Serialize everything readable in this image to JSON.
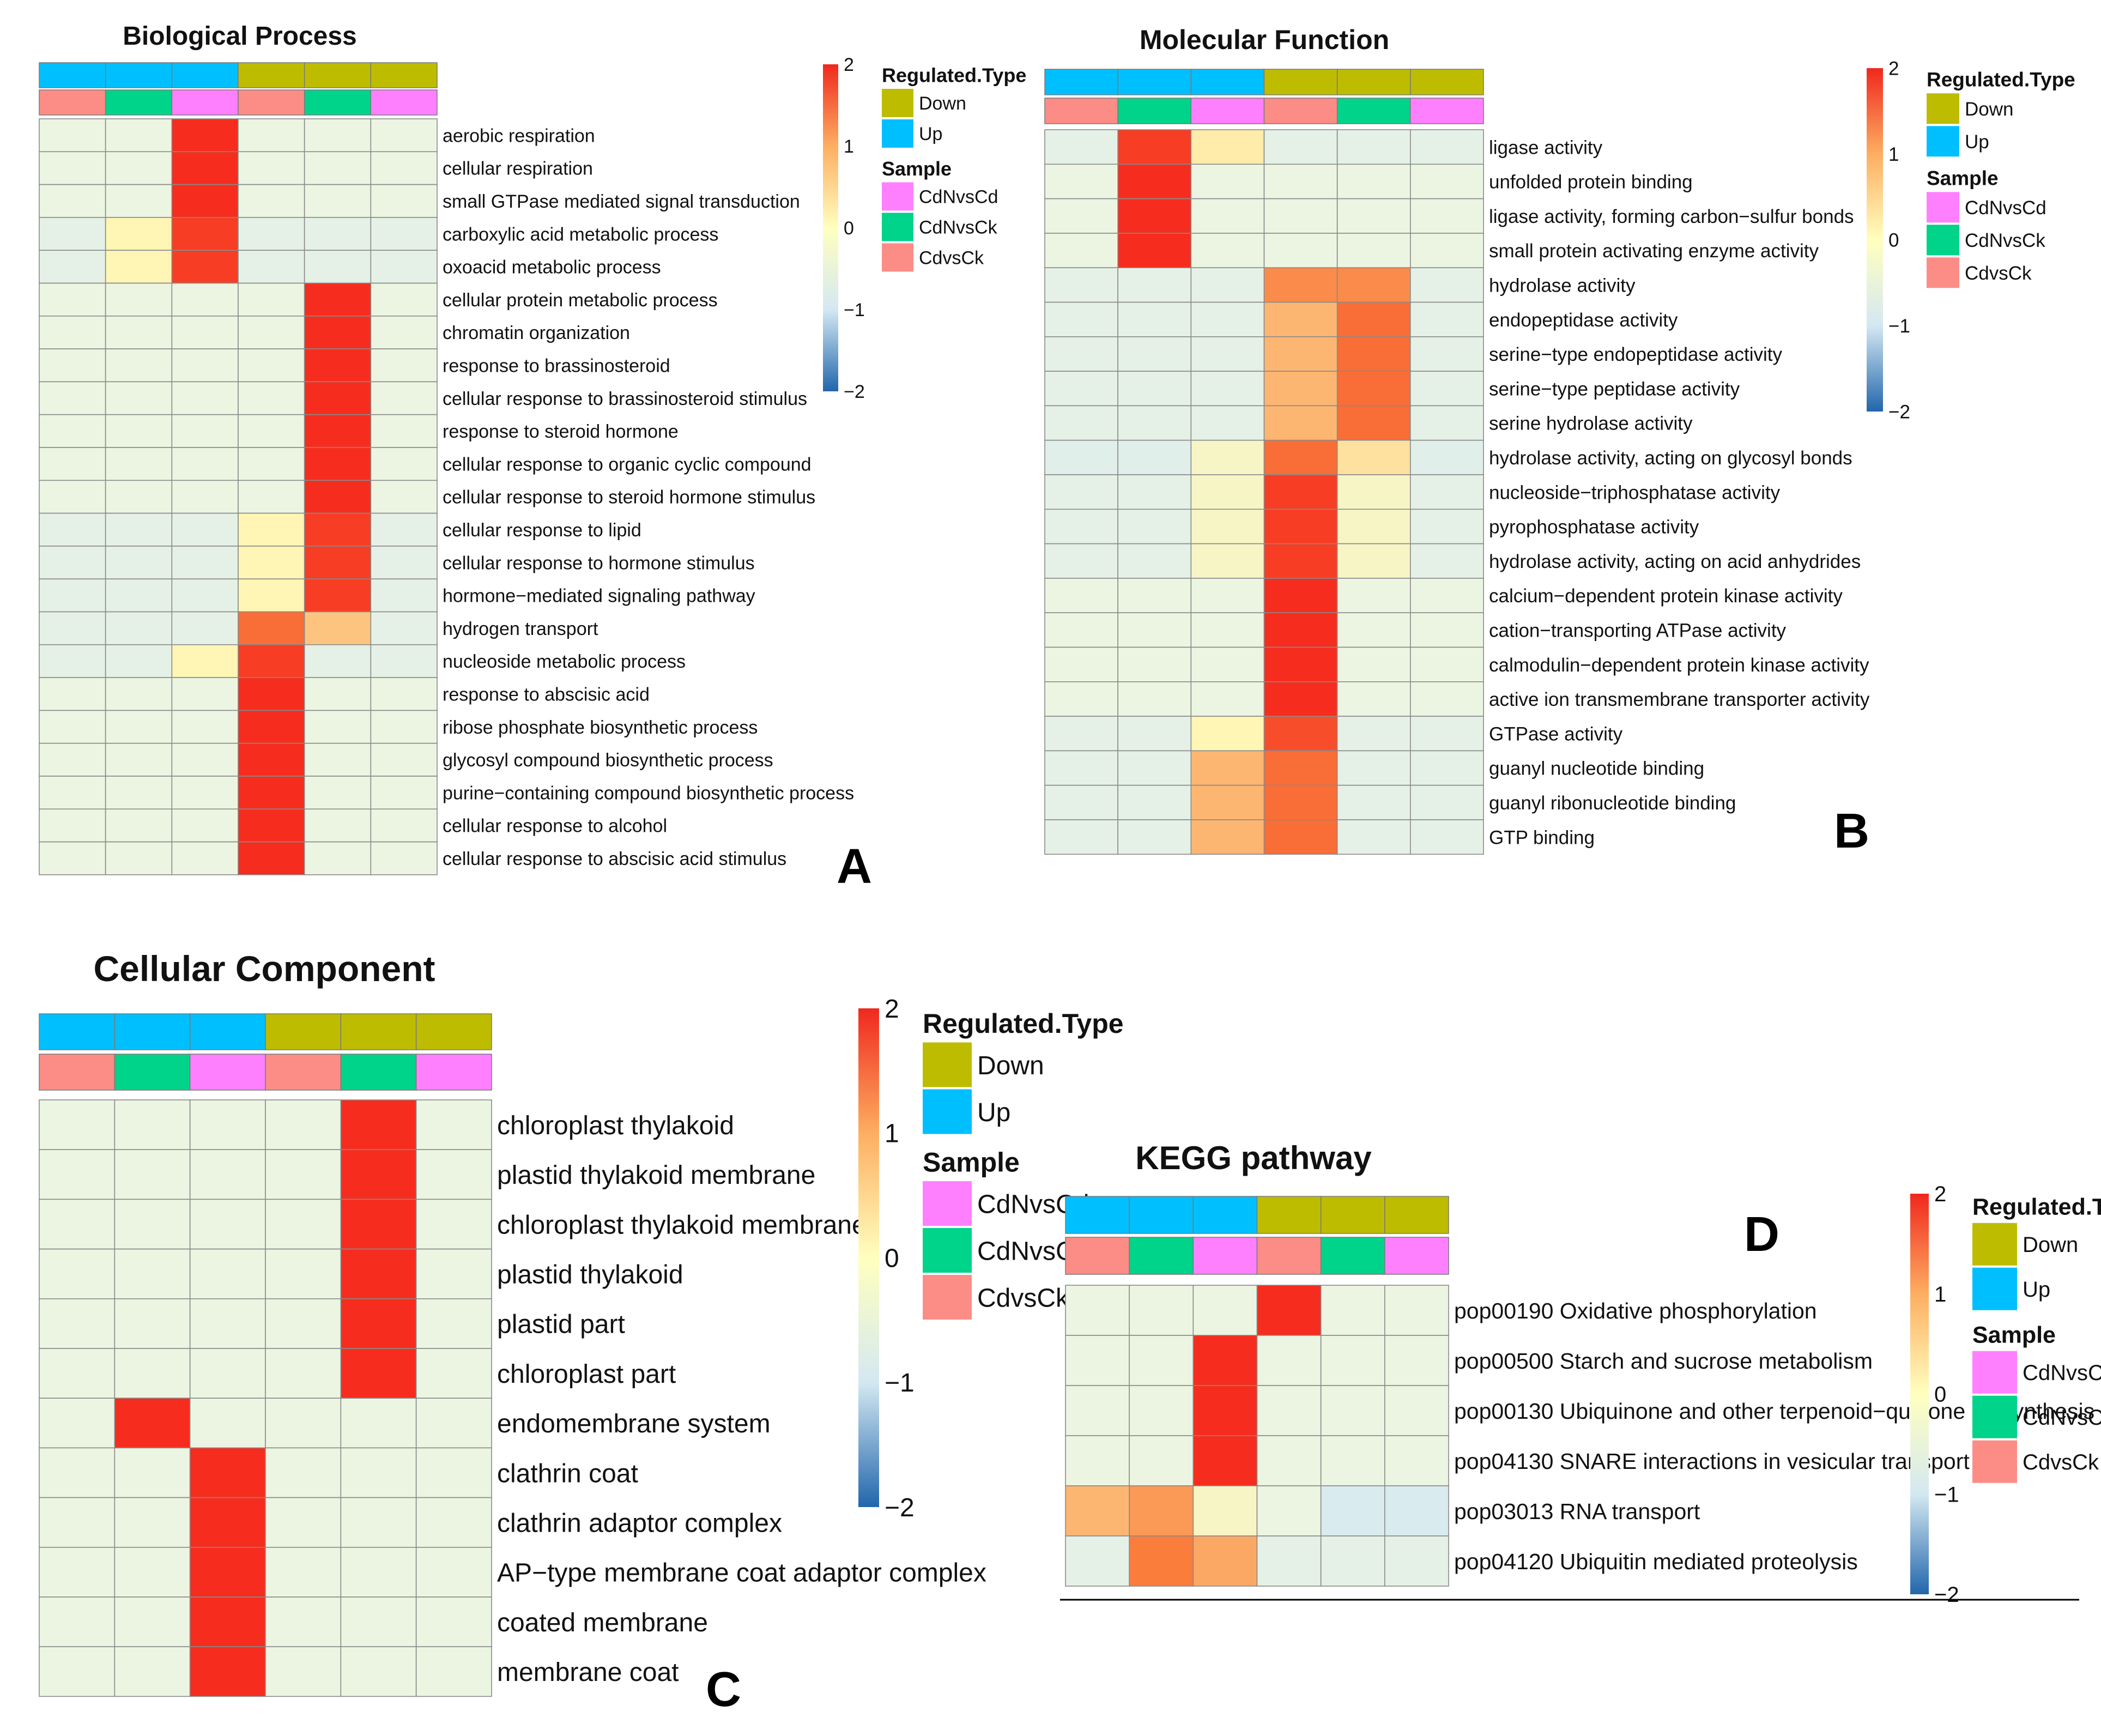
{
  "palette": {
    "up": "#00bfff",
    "down": "#bdbc00",
    "CdNvsCd": "#ff80ff",
    "CdNvsCk": "#00d38a",
    "CdvsCk": "#fb8d86",
    "grid": "#8a8a8a"
  },
  "legend_text": {
    "regulated_title": "Regulated.Type",
    "down": "Down",
    "up": "Up",
    "sample_title": "Sample",
    "samples": [
      "CdNvsCd",
      "CdNvsCk",
      "CdvsCk"
    ],
    "scale_ticks": [
      "2",
      "1",
      "0",
      "−1",
      "−2"
    ]
  },
  "chart_data": [
    {
      "id": "A",
      "panel_letter": "A",
      "type": "heatmap",
      "title": "Biological Process",
      "columns": [
        {
          "regulated": "Up",
          "sample": "CdvsCk"
        },
        {
          "regulated": "Up",
          "sample": "CdNvsCk"
        },
        {
          "regulated": "Up",
          "sample": "CdNvsCd"
        },
        {
          "regulated": "Down",
          "sample": "CdvsCk"
        },
        {
          "regulated": "Down",
          "sample": "CdNvsCk"
        },
        {
          "regulated": "Down",
          "sample": "CdNvsCd"
        }
      ],
      "color_range": [
        -2,
        2
      ],
      "rows": [
        {
          "label": "aerobic respiration",
          "values": [
            0,
            0,
            2,
            0,
            0,
            0
          ]
        },
        {
          "label": "cellular respiration",
          "values": [
            0,
            0,
            2,
            0,
            0,
            0
          ]
        },
        {
          "label": "small GTPase mediated signal transduction",
          "values": [
            0,
            0,
            2,
            0,
            0,
            0
          ]
        },
        {
          "label": "carboxylic acid metabolic process",
          "values": [
            -0.3,
            0.5,
            1.9,
            -0.3,
            -0.3,
            -0.3
          ]
        },
        {
          "label": "oxoacid metabolic process",
          "values": [
            -0.3,
            0.5,
            1.9,
            -0.3,
            -0.3,
            -0.3
          ]
        },
        {
          "label": "cellular protein metabolic process",
          "values": [
            0,
            0,
            0,
            0,
            2,
            0
          ]
        },
        {
          "label": "chromatin organization",
          "values": [
            0,
            0,
            0,
            0,
            2,
            0
          ]
        },
        {
          "label": "response to brassinosteroid",
          "values": [
            0,
            0,
            0,
            0,
            2,
            0
          ]
        },
        {
          "label": "cellular response to brassinosteroid stimulus",
          "values": [
            0,
            0,
            0,
            0,
            2,
            0
          ]
        },
        {
          "label": "response to steroid hormone",
          "values": [
            0,
            0,
            0,
            0,
            2,
            0
          ]
        },
        {
          "label": "cellular response to organic cyclic compound",
          "values": [
            0,
            0,
            0,
            0,
            2,
            0
          ]
        },
        {
          "label": "cellular response to steroid hormone stimulus",
          "values": [
            0,
            0,
            0,
            0,
            2,
            0
          ]
        },
        {
          "label": "cellular response to lipid",
          "values": [
            -0.3,
            -0.3,
            -0.3,
            0.5,
            1.9,
            -0.3
          ]
        },
        {
          "label": "cellular response to hormone stimulus",
          "values": [
            -0.3,
            -0.3,
            -0.3,
            0.5,
            1.9,
            -0.3
          ]
        },
        {
          "label": "hormone−mediated signaling pathway",
          "values": [
            -0.3,
            -0.3,
            -0.3,
            0.5,
            1.9,
            -0.3
          ]
        },
        {
          "label": "hydrogen transport",
          "values": [
            -0.3,
            -0.3,
            -0.3,
            1.6,
            1.0,
            -0.3
          ]
        },
        {
          "label": "nucleoside metabolic process",
          "values": [
            -0.3,
            -0.3,
            0.5,
            1.9,
            -0.3,
            -0.3
          ]
        },
        {
          "label": "response to abscisic acid",
          "values": [
            0,
            0,
            0,
            2,
            0,
            0
          ]
        },
        {
          "label": "ribose phosphate biosynthetic process",
          "values": [
            0,
            0,
            0,
            2,
            0,
            0
          ]
        },
        {
          "label": "glycosyl compound biosynthetic process",
          "values": [
            0,
            0,
            0,
            2,
            0,
            0
          ]
        },
        {
          "label": "purine−containing compound biosynthetic process",
          "values": [
            0,
            0,
            0,
            2,
            0,
            0
          ]
        },
        {
          "label": "cellular response to alcohol",
          "values": [
            0,
            0,
            0,
            2,
            0,
            0
          ]
        },
        {
          "label": "cellular response to abscisic acid stimulus",
          "values": [
            0,
            0,
            0,
            2,
            0,
            0
          ]
        }
      ]
    },
    {
      "id": "B",
      "panel_letter": "B",
      "type": "heatmap",
      "title": "Molecular Function",
      "columns": [
        {
          "regulated": "Up",
          "sample": "CdvsCk"
        },
        {
          "regulated": "Up",
          "sample": "CdNvsCk"
        },
        {
          "regulated": "Up",
          "sample": "CdNvsCd"
        },
        {
          "regulated": "Down",
          "sample": "CdvsCk"
        },
        {
          "regulated": "Down",
          "sample": "CdNvsCk"
        },
        {
          "regulated": "Down",
          "sample": "CdNvsCd"
        }
      ],
      "color_range": [
        -2,
        2
      ],
      "rows": [
        {
          "label": "ligase activity",
          "values": [
            -0.3,
            1.9,
            0.6,
            -0.3,
            -0.3,
            -0.3
          ]
        },
        {
          "label": "unfolded protein binding",
          "values": [
            0,
            2,
            0,
            0,
            0,
            0
          ]
        },
        {
          "label": "ligase activity, forming carbon−sulfur bonds",
          "values": [
            0,
            2,
            0,
            0,
            0,
            0
          ]
        },
        {
          "label": "small protein activating enzyme activity",
          "values": [
            0,
            2,
            0,
            0,
            0,
            0
          ]
        },
        {
          "label": "hydrolase activity",
          "values": [
            -0.3,
            -0.3,
            -0.3,
            1.4,
            1.4,
            -0.3
          ]
        },
        {
          "label": "endopeptidase activity",
          "values": [
            -0.3,
            -0.3,
            -0.3,
            1.1,
            1.6,
            -0.3
          ]
        },
        {
          "label": "serine−type endopeptidase activity",
          "values": [
            -0.3,
            -0.3,
            -0.3,
            1.1,
            1.6,
            -0.3
          ]
        },
        {
          "label": "serine−type peptidase activity",
          "values": [
            -0.3,
            -0.3,
            -0.3,
            1.1,
            1.6,
            -0.3
          ]
        },
        {
          "label": "serine hydrolase activity",
          "values": [
            -0.3,
            -0.3,
            -0.3,
            1.1,
            1.6,
            -0.3
          ]
        },
        {
          "label": "hydrolase activity, acting on glycosyl bonds",
          "values": [
            -0.5,
            -0.5,
            0.3,
            1.6,
            0.7,
            -0.5
          ]
        },
        {
          "label": "nucleoside−triphosphatase activity",
          "values": [
            -0.3,
            -0.3,
            0.3,
            1.9,
            0.3,
            -0.3
          ]
        },
        {
          "label": "pyrophosphatase activity",
          "values": [
            -0.3,
            -0.3,
            0.3,
            1.9,
            0.3,
            -0.3
          ]
        },
        {
          "label": "hydrolase activity, acting on acid anhydrides",
          "values": [
            -0.3,
            -0.3,
            0.3,
            1.9,
            0.3,
            -0.3
          ]
        },
        {
          "label": "calcium−dependent protein kinase activity",
          "values": [
            0,
            0,
            0,
            2,
            0,
            0
          ]
        },
        {
          "label": "cation−transporting ATPase activity",
          "values": [
            0,
            0,
            0,
            2,
            0,
            0
          ]
        },
        {
          "label": "calmodulin−dependent protein kinase activity",
          "values": [
            0,
            0,
            0,
            2,
            0,
            0
          ]
        },
        {
          "label": "active ion transmembrane transporter activity",
          "values": [
            0,
            0,
            0,
            2,
            0,
            0
          ]
        },
        {
          "label": "GTPase activity",
          "values": [
            -0.3,
            -0.3,
            0.5,
            1.8,
            -0.3,
            -0.3
          ]
        },
        {
          "label": "guanyl nucleotide binding",
          "values": [
            -0.3,
            -0.3,
            1.1,
            1.6,
            -0.3,
            -0.3
          ]
        },
        {
          "label": "guanyl ribonucleotide binding",
          "values": [
            -0.3,
            -0.3,
            1.1,
            1.6,
            -0.3,
            -0.3
          ]
        },
        {
          "label": "GTP binding",
          "values": [
            -0.3,
            -0.3,
            1.1,
            1.6,
            -0.3,
            -0.3
          ]
        }
      ]
    },
    {
      "id": "C",
      "panel_letter": "C",
      "type": "heatmap",
      "title": "Cellular Component",
      "columns": [
        {
          "regulated": "Up",
          "sample": "CdvsCk"
        },
        {
          "regulated": "Up",
          "sample": "CdNvsCk"
        },
        {
          "regulated": "Up",
          "sample": "CdNvsCd"
        },
        {
          "regulated": "Down",
          "sample": "CdvsCk"
        },
        {
          "regulated": "Down",
          "sample": "CdNvsCk"
        },
        {
          "regulated": "Down",
          "sample": "CdNvsCd"
        }
      ],
      "color_range": [
        -2,
        2
      ],
      "rows": [
        {
          "label": "chloroplast thylakoid",
          "values": [
            0,
            0,
            0,
            0,
            2,
            0
          ]
        },
        {
          "label": "plastid thylakoid membrane",
          "values": [
            0,
            0,
            0,
            0,
            2,
            0
          ]
        },
        {
          "label": "chloroplast thylakoid membrane",
          "values": [
            0,
            0,
            0,
            0,
            2,
            0
          ]
        },
        {
          "label": "plastid thylakoid",
          "values": [
            0,
            0,
            0,
            0,
            2,
            0
          ]
        },
        {
          "label": "plastid part",
          "values": [
            0,
            0,
            0,
            0,
            2,
            0
          ]
        },
        {
          "label": "chloroplast part",
          "values": [
            0,
            0,
            0,
            0,
            2,
            0
          ]
        },
        {
          "label": "endomembrane system",
          "values": [
            0,
            2,
            0,
            0,
            0,
            0
          ]
        },
        {
          "label": "clathrin coat",
          "values": [
            0,
            0,
            2,
            0,
            0,
            0
          ]
        },
        {
          "label": "clathrin adaptor complex",
          "values": [
            0,
            0,
            2,
            0,
            0,
            0
          ]
        },
        {
          "label": "AP−type membrane coat adaptor complex",
          "values": [
            0,
            0,
            2,
            0,
            0,
            0
          ]
        },
        {
          "label": "coated membrane",
          "values": [
            0,
            0,
            2,
            0,
            0,
            0
          ]
        },
        {
          "label": "membrane coat",
          "values": [
            0,
            0,
            2,
            0,
            0,
            0
          ]
        }
      ]
    },
    {
      "id": "D",
      "panel_letter": "D",
      "type": "heatmap",
      "title": "KEGG pathway",
      "columns": [
        {
          "regulated": "Up",
          "sample": "CdvsCk"
        },
        {
          "regulated": "Up",
          "sample": "CdNvsCk"
        },
        {
          "regulated": "Up",
          "sample": "CdNvsCd"
        },
        {
          "regulated": "Down",
          "sample": "CdvsCk"
        },
        {
          "regulated": "Down",
          "sample": "CdNvsCk"
        },
        {
          "regulated": "Down",
          "sample": "CdNvsCd"
        }
      ],
      "color_range": [
        -2,
        2
      ],
      "rows": [
        {
          "label": "pop00190 Oxidative phosphorylation",
          "values": [
            0,
            0,
            0,
            2,
            0,
            0
          ]
        },
        {
          "label": "pop00500 Starch and sucrose metabolism",
          "values": [
            0,
            0,
            2,
            0,
            0,
            0
          ]
        },
        {
          "label": "pop00130 Ubiquinone and other terpenoid−quinone biosynthesis",
          "values": [
            0,
            0,
            2,
            0,
            0,
            0
          ]
        },
        {
          "label": "pop04130 SNARE interactions in vesicular transport",
          "values": [
            0,
            0,
            2,
            0,
            0,
            0
          ]
        },
        {
          "label": "pop03013 RNA transport",
          "values": [
            1.1,
            1.3,
            0.3,
            0.0,
            -0.8,
            -0.8
          ]
        },
        {
          "label": "pop04120 Ubiquitin mediated proteolysis",
          "values": [
            -0.3,
            1.5,
            1.2,
            -0.3,
            -0.3,
            -0.3
          ]
        }
      ]
    }
  ]
}
